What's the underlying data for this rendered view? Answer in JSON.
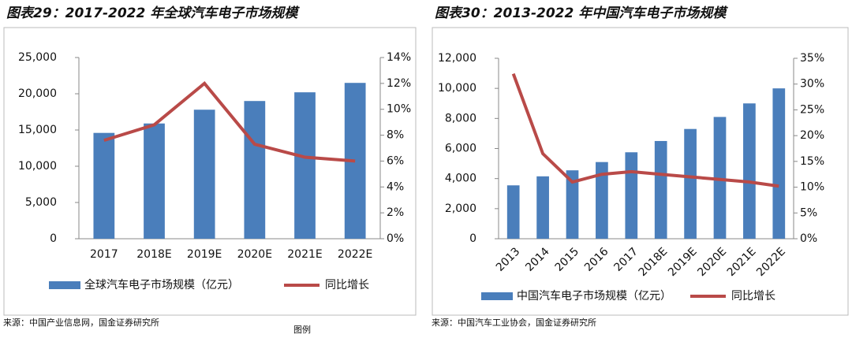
{
  "chart_data": [
    {
      "type": "bar_line",
      "title": "图表29：2017-2022 年全球汽车电子市场规模",
      "categories": [
        "2017",
        "2018E",
        "2019E",
        "2020E",
        "2021E",
        "2022E"
      ],
      "series": [
        {
          "name": "全球汽车电子市场规模（亿元）",
          "color": "#4a7ebb",
          "type": "bar",
          "values": [
            14600,
            15900,
            17800,
            19000,
            20200,
            21500
          ]
        },
        {
          "name": "同比增长",
          "color": "#b94a48",
          "type": "line",
          "axis": "y2",
          "values": [
            7.6,
            8.8,
            12.0,
            7.3,
            6.3,
            6.0
          ]
        }
      ],
      "ylim": [
        0,
        25000
      ],
      "yticks": [
        0,
        {
          "value": 5000,
          "label": "5,000"
        },
        {
          "value": 10000,
          "label": "10,000"
        },
        {
          "value": 15000,
          "label": "15,000"
        },
        {
          "value": 20000,
          "label": "20,000"
        },
        {
          "value": 25000,
          "label": "25,000"
        }
      ],
      "y2lim": [
        0,
        14
      ],
      "y2ticks": [
        {
          "value": 0,
          "label": "0%"
        },
        {
          "value": 2,
          "label": "2%"
        },
        {
          "value": 4,
          "label": "4%"
        },
        {
          "value": 6,
          "label": "6%"
        },
        {
          "value": 8,
          "label": "8%"
        },
        {
          "value": 10,
          "label": "10%"
        },
        {
          "value": 12,
          "label": "12%"
        },
        {
          "value": 14,
          "label": "14%"
        }
      ],
      "grid": false,
      "source": "来源：中国产业信息网，国金证券研究所"
    },
    {
      "type": "bar_line",
      "title": "图表30：2013-2022 年中国汽车电子市场规模",
      "categories": [
        "2013",
        "2014",
        "2015",
        "2016",
        "2017",
        "2018E",
        "2019E",
        "2020E",
        "2021E",
        "2022E"
      ],
      "series": [
        {
          "name": "中国汽车电子市场规模（亿元）",
          "color": "#4a7ebb",
          "type": "bar",
          "values": [
            3550,
            4150,
            4550,
            5100,
            5750,
            6500,
            7300,
            8100,
            9000,
            10000
          ]
        },
        {
          "name": "同比增长",
          "color": "#b94a48",
          "type": "line",
          "axis": "y2",
          "values": [
            32,
            16.5,
            11,
            12.5,
            13,
            12.5,
            12,
            11.5,
            11,
            10.2
          ]
        }
      ],
      "ylim": [
        0,
        12000
      ],
      "yticks": [
        0,
        {
          "value": 2000,
          "label": "2,000"
        },
        {
          "value": 4000,
          "label": "4,000"
        },
        {
          "value": 6000,
          "label": "6,000"
        },
        {
          "value": 8000,
          "label": "8,000"
        },
        {
          "value": 10000,
          "label": "10,000"
        },
        {
          "value": 12000,
          "label": "12,000"
        }
      ],
      "y2lim": [
        0,
        35
      ],
      "y2ticks": [
        {
          "value": 0,
          "label": "0%"
        },
        {
          "value": 5,
          "label": "5%"
        },
        {
          "value": 10,
          "label": "10%"
        },
        {
          "value": 15,
          "label": "15%"
        },
        {
          "value": 20,
          "label": "20%"
        },
        {
          "value": 25,
          "label": "25%"
        },
        {
          "value": 30,
          "label": "30%"
        },
        {
          "value": 35,
          "label": "35%"
        }
      ],
      "grid": false,
      "source": "来源：中国汽车工业协会，国金证券研究所"
    }
  ],
  "overlay_label": "图例"
}
